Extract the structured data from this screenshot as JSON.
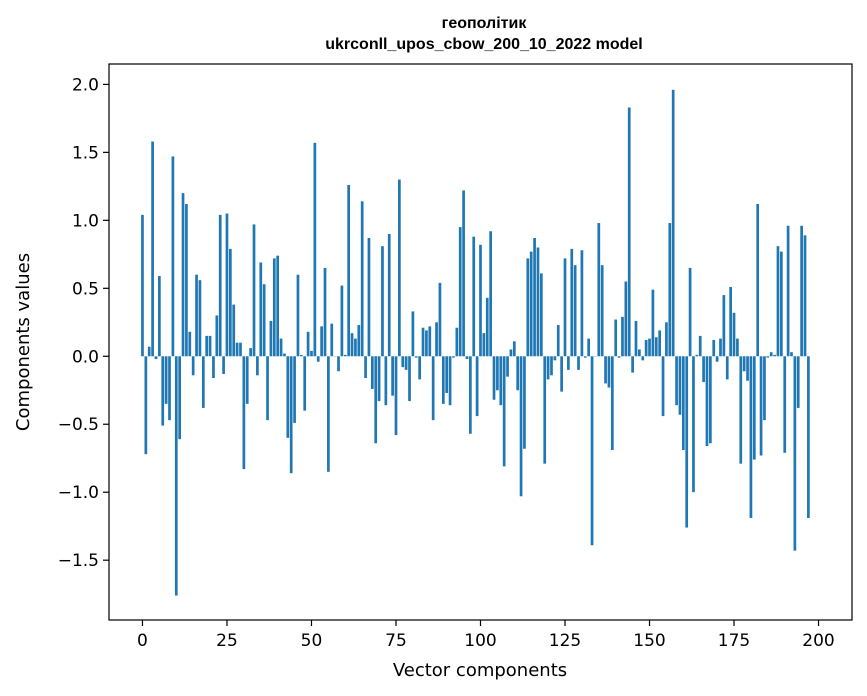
{
  "chart_data": {
    "type": "bar",
    "title_line1": "геополітик",
    "title_line2": "ukrconll_upos_cbow_200_10_2022 model",
    "xlabel": "Vector components",
    "ylabel": "Components values",
    "xlim": [
      -9.9,
      209.9
    ],
    "ylim": [
      -1.94,
      2.15
    ],
    "xticks": [
      0,
      25,
      50,
      75,
      100,
      125,
      150,
      175,
      200
    ],
    "xtick_labels": [
      "0",
      "25",
      "50",
      "75",
      "100",
      "125",
      "150",
      "175",
      "200"
    ],
    "yticks": [
      -1.5,
      -1.0,
      -0.5,
      0.0,
      0.5,
      1.0,
      1.5,
      2.0
    ],
    "ytick_labels": [
      "−1.5",
      "−1.0",
      "−0.5",
      "0.0",
      "0.5",
      "1.0",
      "1.5",
      "2.0"
    ],
    "bar_color": "#1f77b4",
    "grid": false,
    "values": [
      1.04,
      -0.72,
      0.07,
      1.58,
      -0.02,
      0.59,
      -0.51,
      -0.35,
      -0.47,
      1.47,
      -1.76,
      -0.61,
      1.2,
      1.12,
      0.18,
      -0.14,
      0.6,
      0.56,
      -0.38,
      0.15,
      0.15,
      -0.16,
      0.3,
      1.04,
      -0.13,
      1.05,
      0.79,
      0.38,
      0.1,
      0.1,
      -0.83,
      -0.35,
      0.06,
      0.97,
      -0.14,
      0.69,
      0.53,
      -0.47,
      0.26,
      0.72,
      0.74,
      0.13,
      0.02,
      -0.6,
      -0.86,
      -0.49,
      0.6,
      0.01,
      -0.4,
      0.18,
      0.04,
      1.57,
      -0.04,
      0.22,
      0.65,
      -0.85,
      0.24,
      0.0,
      -0.11,
      0.52,
      0.01,
      1.26,
      0.17,
      0.13,
      0.23,
      1.14,
      -0.16,
      0.87,
      -0.24,
      -0.64,
      -0.33,
      0.81,
      -0.36,
      0.9,
      -0.29,
      -0.58,
      1.3,
      -0.08,
      -0.1,
      -0.33,
      0.33,
      -0.01,
      -0.17,
      0.21,
      0.19,
      0.22,
      -0.47,
      0.25,
      0.54,
      -0.35,
      -0.27,
      -0.36,
      -0.01,
      0.21,
      0.95,
      1.22,
      -0.02,
      -0.57,
      0.88,
      -0.44,
      0.82,
      0.17,
      0.43,
      0.92,
      -0.32,
      -0.25,
      -0.36,
      -0.81,
      -0.15,
      0.05,
      0.11,
      -0.25,
      -1.03,
      -0.68,
      0.72,
      0.77,
      0.87,
      0.8,
      0.61,
      -0.79,
      -0.17,
      -0.14,
      -0.03,
      0.23,
      -0.26,
      0.72,
      -0.1,
      0.79,
      0.67,
      -0.1,
      0.78,
      -0.01,
      0.13,
      -1.39,
      0.0,
      0.98,
      0.67,
      -0.2,
      -0.23,
      -0.69,
      0.27,
      -0.01,
      0.29,
      0.55,
      1.83,
      -0.12,
      0.26,
      0.05,
      -0.03,
      0.12,
      0.13,
      0.49,
      0.14,
      0.19,
      -0.44,
      0.25,
      0.98,
      1.96,
      -0.36,
      -0.43,
      -0.69,
      -1.26,
      0.65,
      -1.0,
      0.01,
      0.15,
      -0.19,
      -0.66,
      -0.64,
      0.12,
      -0.04,
      0.13,
      0.45,
      -0.17,
      0.51,
      0.32,
      0.13,
      -0.79,
      -0.11,
      -0.18,
      -1.19,
      -0.76,
      1.12,
      -0.73,
      -0.47,
      -0.01,
      0.03,
      0.01,
      0.81,
      0.77,
      -0.71,
      0.96,
      0.03,
      -1.43,
      -0.38,
      0.96,
      0.89,
      -1.19
    ]
  }
}
